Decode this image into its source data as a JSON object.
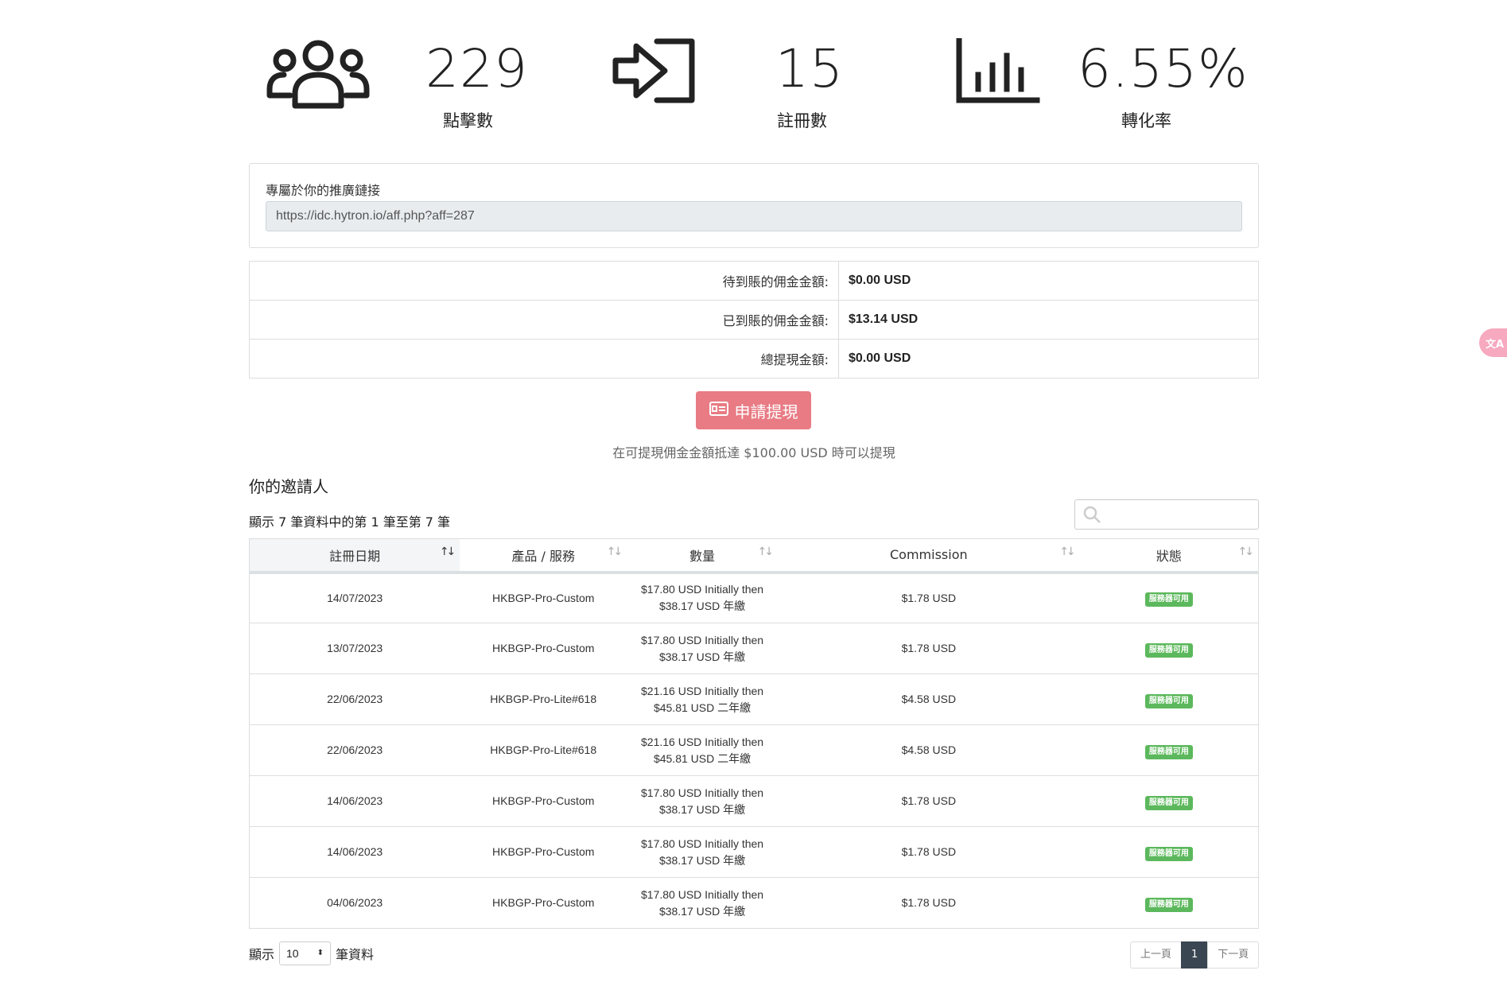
{
  "stats": [
    {
      "icon": "users-icon",
      "value": "229",
      "label": "點擊數"
    },
    {
      "icon": "sign-in-icon",
      "value": "15",
      "label": "註冊數"
    },
    {
      "icon": "bar-chart-icon",
      "value": "6.55%",
      "label": "轉化率"
    }
  ],
  "referral": {
    "label": "專屬於你的推廣鏈接",
    "link": "https://idc.hytron.io/aff.php?aff=287"
  },
  "commissions": [
    {
      "label": "待到賬的佣金金額:",
      "value": "$0.00 USD"
    },
    {
      "label": "已到賬的佣金金額:",
      "value": "$13.14 USD"
    },
    {
      "label": "總提現金額:",
      "value": "$0.00 USD"
    }
  ],
  "withdraw": {
    "button_label": "申請提現",
    "note": "在可提現佣金金額抵達 $100.00 USD 時可以提現"
  },
  "referrals_section": {
    "title": "你的邀請人",
    "showing": "顯示 7 筆資料中的第 1 筆至第 7 筆",
    "search_placeholder": "",
    "columns": [
      "註冊日期",
      "產品 / 服務",
      "數量",
      "Commission",
      "狀態"
    ],
    "rows": [
      {
        "date": "14/07/2023",
        "product": "HKBGP-Pro-Custom",
        "amount_1": "$17.80 USD Initially then",
        "amount_2": "$38.17 USD 年繳",
        "commission": "$1.78 USD",
        "status": "服務器可用"
      },
      {
        "date": "13/07/2023",
        "product": "HKBGP-Pro-Custom",
        "amount_1": "$17.80 USD Initially then",
        "amount_2": "$38.17 USD 年繳",
        "commission": "$1.78 USD",
        "status": "服務器可用"
      },
      {
        "date": "22/06/2023",
        "product": "HKBGP-Pro-Lite#618",
        "amount_1": "$21.16 USD Initially then",
        "amount_2": "$45.81 USD 二年繳",
        "commission": "$4.58 USD",
        "status": "服務器可用"
      },
      {
        "date": "22/06/2023",
        "product": "HKBGP-Pro-Lite#618",
        "amount_1": "$21.16 USD Initially then",
        "amount_2": "$45.81 USD 二年繳",
        "commission": "$4.58 USD",
        "status": "服務器可用"
      },
      {
        "date": "14/06/2023",
        "product": "HKBGP-Pro-Custom",
        "amount_1": "$17.80 USD Initially then",
        "amount_2": "$38.17 USD 年繳",
        "commission": "$1.78 USD",
        "status": "服務器可用"
      },
      {
        "date": "14/06/2023",
        "product": "HKBGP-Pro-Custom",
        "amount_1": "$17.80 USD Initially then",
        "amount_2": "$38.17 USD 年繳",
        "commission": "$1.78 USD",
        "status": "服務器可用"
      },
      {
        "date": "04/06/2023",
        "product": "HKBGP-Pro-Custom",
        "amount_1": "$17.80 USD Initially then",
        "amount_2": "$38.17 USD 年繳",
        "commission": "$1.78 USD",
        "status": "服務器可用"
      }
    ],
    "status_color": "#5cb85c"
  },
  "footer": {
    "show_prefix": "顯示",
    "page_length": "10",
    "show_suffix": "筆資料",
    "prev": "上一頁",
    "current_page": "1",
    "next": "下一頁"
  },
  "colors": {
    "withdraw_button": "#e87b84",
    "active_page": "#3a4652"
  }
}
